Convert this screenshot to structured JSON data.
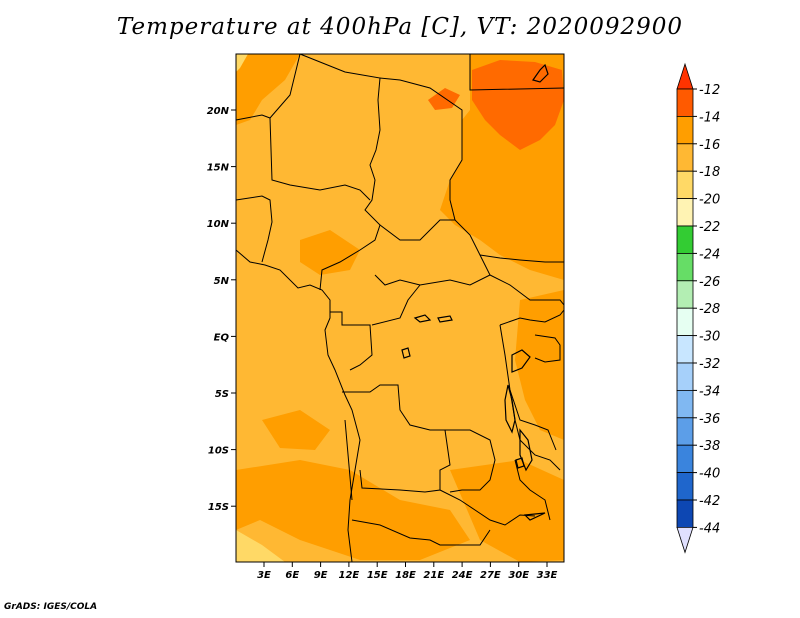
{
  "title": "Temperature at 400hPa [C], VT: 2020092900",
  "credit": "GrADS: IGES/COLA",
  "map": {
    "lon_ticks": [
      "3E",
      "6E",
      "9E",
      "12E",
      "15E",
      "18E",
      "21E",
      "24E",
      "27E",
      "30E",
      "33E"
    ],
    "lat_ticks": [
      "20N",
      "15N",
      "10N",
      "5N",
      "EQ",
      "5S",
      "10S",
      "15S"
    ],
    "dominant_fill_color": "#ffb833",
    "warm_region_color": "#ff9e00",
    "hot_region_color": "#ff6a00",
    "cool_edge_color": "#ffd966"
  },
  "colorbar": {
    "levels": [
      "-12",
      "-14",
      "-16",
      "-18",
      "-20",
      "-22",
      "-24",
      "-26",
      "-28",
      "-30",
      "-32",
      "-34",
      "-36",
      "-38",
      "-40",
      "-42",
      "-44"
    ],
    "colors": [
      "#ff5a00",
      "#ff9e00",
      "#ffb833",
      "#ffd966",
      "#fff3b3",
      "#33cc33",
      "#66dd66",
      "#b3eeb3",
      "#e6fff2",
      "#c8e6ff",
      "#a6d0fa",
      "#80b8f2",
      "#5c9ee8",
      "#3a84dd",
      "#1f66cc",
      "#0d47b3",
      "#0a0a80"
    ],
    "top_arrow_color": "#ff3300",
    "bottom_arrow_color": "#e0e0ff"
  }
}
